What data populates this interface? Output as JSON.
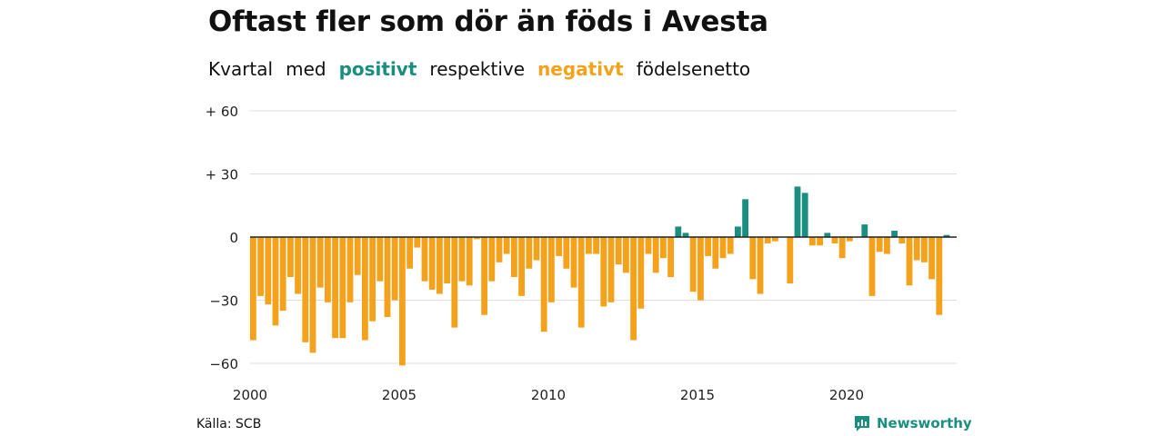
{
  "title": "Oftast fler som dör än föds i Avesta",
  "subtitle": {
    "w1": "Kvartal",
    "w2": "med",
    "positive_word": "positivt",
    "w3": "respektive",
    "negative_word": "negativt",
    "w4": "födelsenetto"
  },
  "colors": {
    "positive": "#1a8f7f",
    "negative": "#f4a21c",
    "grid": "#dddddd",
    "brand": "#1a8f7f"
  },
  "source": "Källa: SCB",
  "brand": {
    "name": "Newsworthy",
    "icon": "newsworthy-logo-icon"
  },
  "chart_data": {
    "type": "bar",
    "title": "Oftast fler som dör än föds i Avesta",
    "xlabel": "",
    "ylabel": "",
    "ylim": [
      -65,
      60
    ],
    "yticks": [
      60,
      30,
      0,
      -30,
      -60
    ],
    "ytick_labels": [
      "+ 60",
      "+ 30",
      "0",
      "−30",
      "−60"
    ],
    "xtick_labels": [
      "2000",
      "2005",
      "2010",
      "2015",
      "2020"
    ],
    "start_year": 2000,
    "quarters_per_year": 4,
    "grid": true,
    "values": [
      -49,
      -28,
      -32,
      -42,
      -35,
      -19,
      -27,
      -50,
      -55,
      -24,
      -31,
      -48,
      -48,
      -31,
      -18,
      -49,
      -40,
      -21,
      -38,
      -30,
      -61,
      -15,
      -5,
      -21,
      -25,
      -27,
      -22,
      -43,
      -21,
      -23,
      -1,
      -37,
      -21,
      -12,
      -8,
      -19,
      -28,
      -15,
      -11,
      -45,
      -31,
      -9,
      -15,
      -24,
      -43,
      -8,
      -8,
      -33,
      -31,
      -13,
      -17,
      -49,
      -34,
      -8,
      -17,
      -10,
      -19,
      5,
      2,
      -26,
      -30,
      -9,
      -15,
      -10,
      -8,
      5,
      18,
      -20,
      -27,
      -3,
      -2,
      0,
      -22,
      24,
      21,
      -4,
      -4,
      2,
      -3,
      -10,
      -2,
      0,
      6,
      -28,
      -7,
      -8,
      3,
      -3,
      -23,
      -11,
      -12,
      -20,
      -37,
      1
    ]
  }
}
